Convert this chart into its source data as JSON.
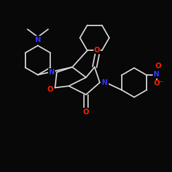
{
  "bg_color": "#080808",
  "bond_color": "#d8d8d8",
  "bond_width": 1.3,
  "atom_colors": {
    "N": "#3333ff",
    "O": "#ff2200",
    "C": "#d8d8d8"
  },
  "font_size": 7.5
}
